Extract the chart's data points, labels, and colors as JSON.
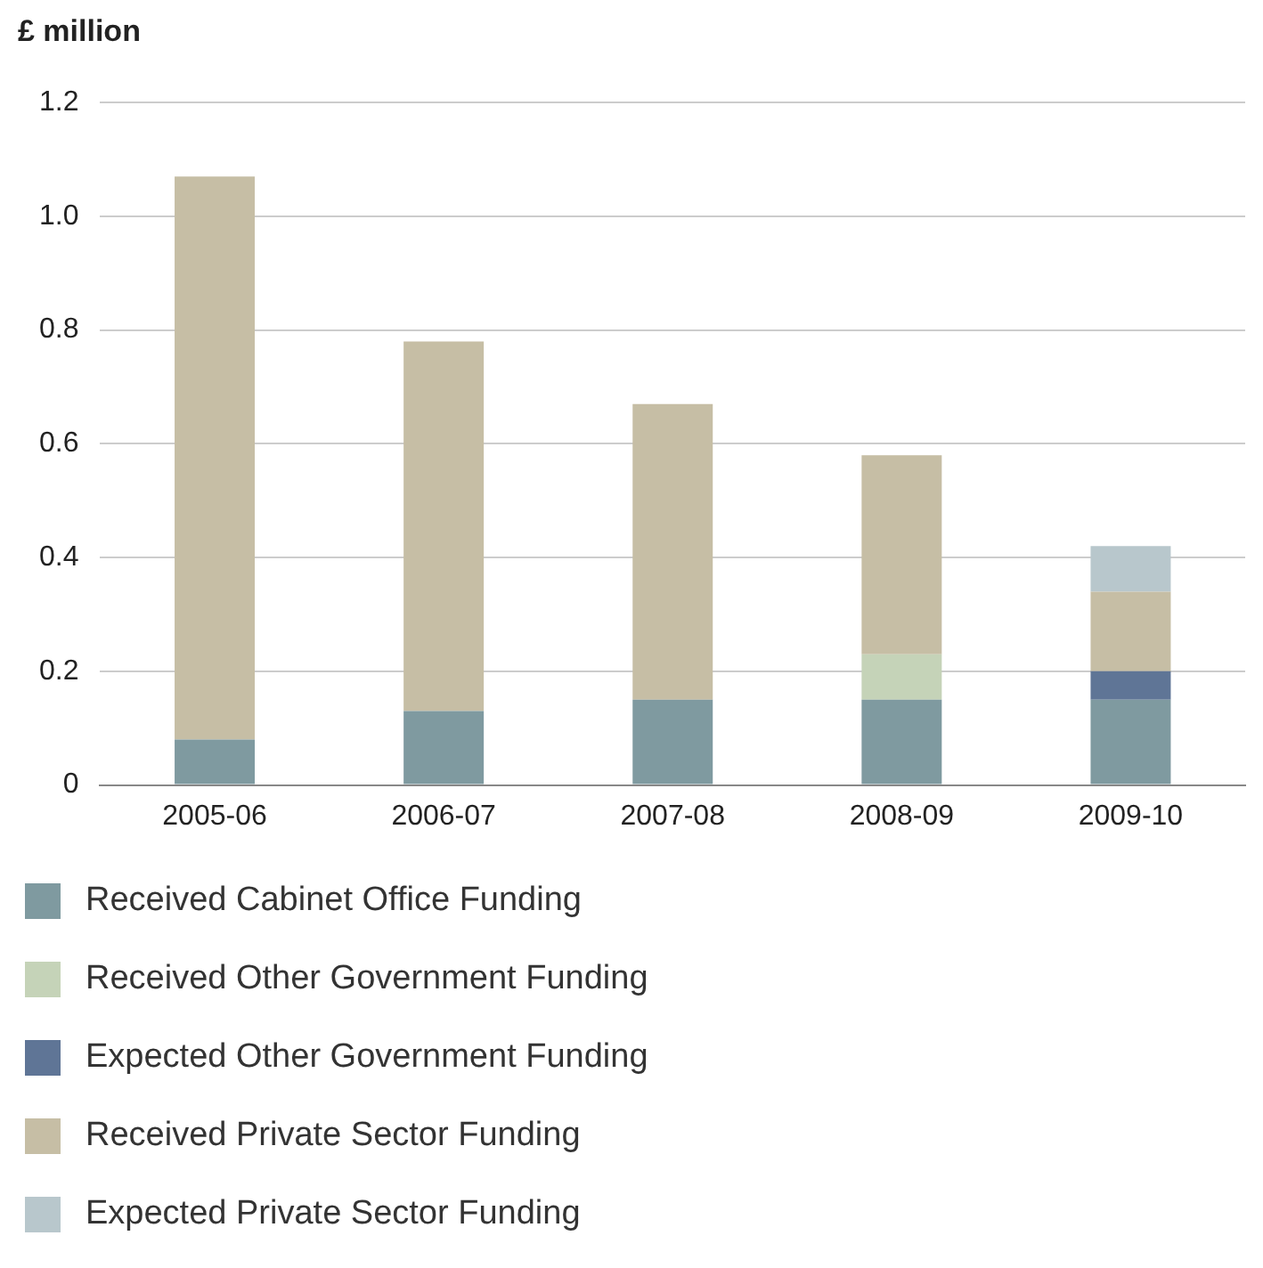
{
  "chart_data": {
    "type": "bar",
    "ylabel": "£ million",
    "stacked": true,
    "categories": [
      "2005-06",
      "2006-07",
      "2007-08",
      "2008-09",
      "2009-10"
    ],
    "series": [
      {
        "name": "Received Cabinet Office Funding",
        "color": "#7f9aa0",
        "values": [
          0.08,
          0.13,
          0.15,
          0.15,
          0.15
        ]
      },
      {
        "name": "Received Other Government Funding",
        "color": "#c5d3b8",
        "values": [
          0,
          0,
          0,
          0.08,
          0
        ]
      },
      {
        "name": "Expected Other Government Funding",
        "color": "#5f7596",
        "values": [
          0,
          0,
          0,
          0,
          0.05
        ]
      },
      {
        "name": "Received Private Sector Funding",
        "color": "#c6bea5",
        "values": [
          0.99,
          0.65,
          0.52,
          0.35,
          0.14
        ]
      },
      {
        "name": "Expected Private Sector Funding",
        "color": "#b8c7cc",
        "values": [
          0,
          0,
          0,
          0,
          0.08
        ]
      }
    ],
    "ylim": [
      0,
      1.2
    ],
    "yticks": [
      0,
      0.2,
      0.4,
      0.6,
      0.8,
      {
        "value": 1,
        "label": "1.0"
      },
      1.2
    ],
    "grid": "y",
    "legend": "bottom"
  }
}
